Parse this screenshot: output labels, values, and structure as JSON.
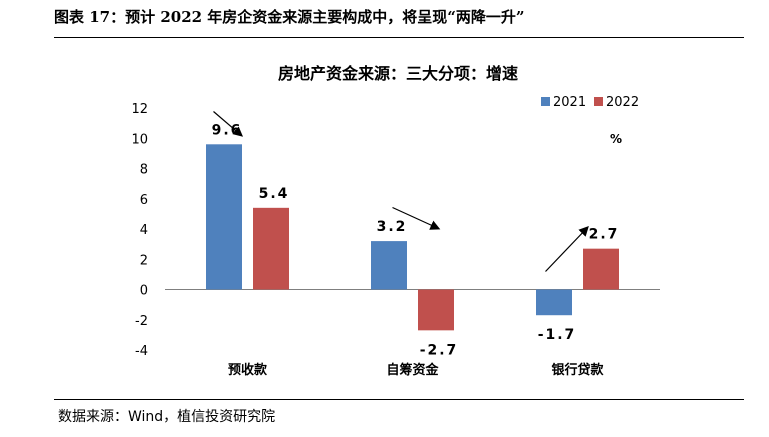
{
  "figure": {
    "title": "图表 17：预计 2022 年房企资金来源主要构成中，将呈现“两降一升”",
    "source": "数据来源：Wind，植信投资研究院"
  },
  "chart_data": {
    "type": "bar",
    "title": "房地产资金来源：三大分项：增速",
    "unit": "%",
    "categories": [
      "预收款",
      "自筹资金",
      "银行贷款"
    ],
    "series": [
      {
        "name": "2021",
        "values": [
          9.6,
          3.2,
          -1.7
        ],
        "labels": [
          "9.6",
          "3.2",
          "-1.7"
        ],
        "color": "#4F81BD"
      },
      {
        "name": "2022",
        "values": [
          5.4,
          -2.7,
          2.7
        ],
        "labels": [
          "5.4",
          "-2.7",
          "2.7"
        ],
        "color": "#C0504D"
      }
    ],
    "yticks": [
      "12",
      "10",
      "8",
      "6",
      "4",
      "2",
      "0",
      "-2",
      "-4"
    ],
    "ylim": [
      -4,
      12
    ],
    "legend_position": "top-right",
    "trend_arrows": [
      "down",
      "down",
      "up"
    ],
    "grid": false
  }
}
